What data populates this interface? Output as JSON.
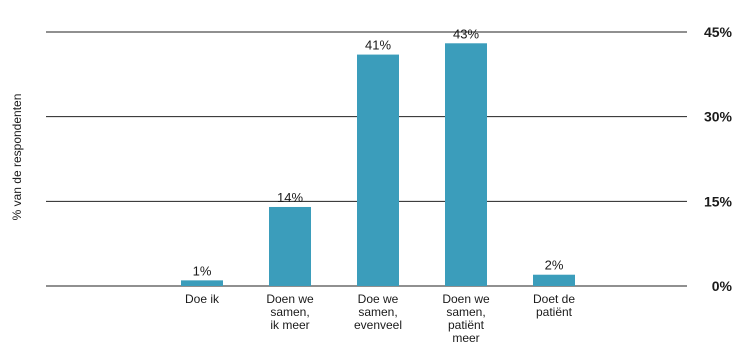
{
  "chart_data": {
    "type": "bar",
    "ylabel": "% van de respondenten",
    "categories": [
      [
        "Doe ik"
      ],
      [
        "Doen we",
        "samen,",
        "ik meer"
      ],
      [
        "Doe we",
        "samen,",
        "evenveel"
      ],
      [
        "Doen we",
        "samen,",
        "patiënt",
        "meer"
      ],
      [
        "Doet de",
        "patiënt"
      ]
    ],
    "values": [
      1,
      14,
      41,
      43,
      2
    ],
    "data_labels": [
      "1%",
      "14%",
      "41%",
      "43%",
      "2%"
    ],
    "ylim": [
      0,
      45
    ],
    "yticks": [
      0,
      15,
      30,
      45
    ],
    "ytick_labels": [
      "0%",
      "15%",
      "30%",
      "45%"
    ],
    "y_axis_position": "right",
    "grid": true,
    "bar_color": "#3b9dbb"
  }
}
